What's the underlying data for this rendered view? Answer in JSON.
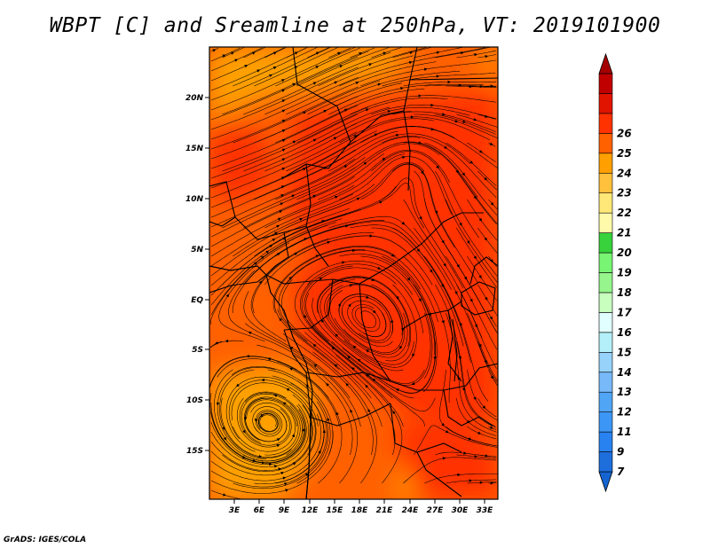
{
  "title": "WBPT [C] and Sreamline at 250hPa, VT: 2019101900",
  "footer": "GrADS: IGES/COLA",
  "map": {
    "lon_labels": [
      "3E",
      "6E",
      "9E",
      "12E",
      "15E",
      "18E",
      "21E",
      "24E",
      "27E",
      "30E",
      "33E"
    ],
    "lat_labels": [
      "20N",
      "15N",
      "10N",
      "5N",
      "EQ",
      "5S",
      "10S",
      "15S"
    ]
  },
  "colorbar": {
    "levels": [
      "7",
      "9",
      "11",
      "12",
      "13",
      "14",
      "15",
      "16",
      "17",
      "18",
      "19",
      "20",
      "21",
      "22",
      "23",
      "24",
      "25",
      "26"
    ],
    "colors": [
      "#1464d2",
      "#1e6edc",
      "#2882f0",
      "#3c96f5",
      "#50a5f5",
      "#78b9fa",
      "#96d2fa",
      "#b4f0fa",
      "#e1ffff",
      "#c8ffbe",
      "#96f58c",
      "#78f573",
      "#37d23c",
      "#fffaaa",
      "#ffe878",
      "#ffc03c",
      "#ffa000",
      "#ff6000",
      "#ff3200",
      "#e11400",
      "#c00000",
      "#a50000"
    ]
  },
  "field_colors": {
    "c21": "#ffa000",
    "c22": "#ff6000",
    "c23": "#ff3200",
    "contour": "#000000"
  }
}
